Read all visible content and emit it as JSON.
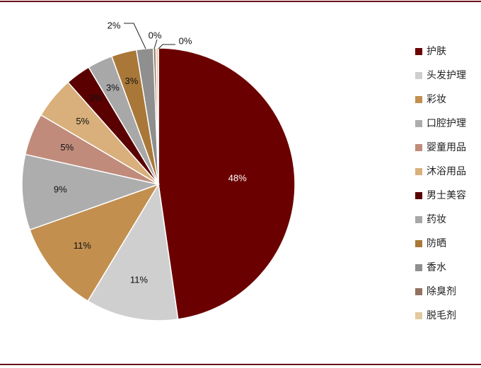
{
  "chart_data": {
    "type": "pie",
    "title": "",
    "legend_position": "right",
    "start_angle_deg": 0,
    "direction": "clockwise",
    "series": [
      {
        "name": "护肤",
        "value": 48,
        "label": "48%",
        "color": "#6b0000"
      },
      {
        "name": "头发护理",
        "value": 11,
        "label": "11%",
        "color": "#cfcfcf"
      },
      {
        "name": "彩妆",
        "value": 11,
        "label": "11%",
        "color": "#c28f4f"
      },
      {
        "name": "口腔护理",
        "value": 9,
        "label": "9%",
        "color": "#adadad"
      },
      {
        "name": "婴童用品",
        "value": 5,
        "label": "5%",
        "color": "#c08b7b"
      },
      {
        "name": "沐浴用品",
        "value": 5,
        "label": "5%",
        "color": "#d9b07b"
      },
      {
        "name": "男士美容",
        "value": 3,
        "label": "3%",
        "color": "#5a0000"
      },
      {
        "name": "药妆",
        "value": 3,
        "label": "3%",
        "color": "#a8a8a8"
      },
      {
        "name": "防晒",
        "value": 3,
        "label": "3%",
        "color": "#a97838"
      },
      {
        "name": "香水",
        "value": 2,
        "label": "2%",
        "color": "#8f8f8f"
      },
      {
        "name": "除臭剂",
        "value": 0.3,
        "label": "0%",
        "color": "#927161"
      },
      {
        "name": "脱毛剂",
        "value": 0.3,
        "label": "0%",
        "color": "#e3c9a2"
      }
    ]
  }
}
